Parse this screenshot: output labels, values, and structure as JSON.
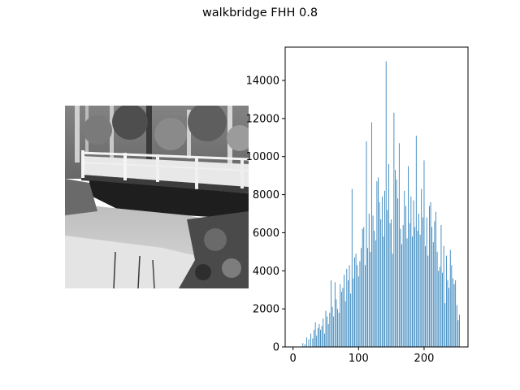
{
  "figure": {
    "title": "walkbridge FHH 0.8"
  },
  "image_panel": {
    "description_icon": "grayscale-photo-bridge-over-creek"
  },
  "chart_data": {
    "type": "bar",
    "title": "",
    "xlabel": "",
    "ylabel": "",
    "xlim": [
      -12,
      267
    ],
    "ylim": [
      0,
      15750
    ],
    "xticks": [
      0,
      100,
      200
    ],
    "yticks": [
      0,
      2000,
      4000,
      6000,
      8000,
      10000,
      12000,
      14000
    ],
    "bar_color": "#1f77b4",
    "x": [
      15,
      18,
      21,
      24,
      27,
      30,
      32,
      34,
      36,
      38,
      40,
      42,
      44,
      46,
      48,
      50,
      52,
      54,
      56,
      58,
      60,
      62,
      64,
      66,
      68,
      70,
      72,
      74,
      76,
      78,
      80,
      82,
      84,
      86,
      88,
      90,
      92,
      94,
      96,
      98,
      100,
      102,
      104,
      106,
      108,
      110,
      112,
      114,
      116,
      118,
      120,
      122,
      124,
      126,
      128,
      130,
      132,
      134,
      136,
      138,
      140,
      142,
      144,
      146,
      148,
      150,
      152,
      154,
      156,
      158,
      160,
      162,
      164,
      166,
      168,
      170,
      172,
      174,
      176,
      178,
      180,
      182,
      184,
      186,
      188,
      190,
      192,
      194,
      196,
      198,
      200,
      202,
      204,
      206,
      208,
      210,
      212,
      214,
      216,
      218,
      220,
      222,
      224,
      226,
      228,
      230,
      232,
      234,
      236,
      238,
      240,
      242,
      244,
      246,
      248,
      250,
      252,
      254
    ],
    "values": [
      200,
      150,
      500,
      400,
      700,
      450,
      900,
      1300,
      600,
      1000,
      1200,
      900,
      1100,
      1500,
      700,
      1900,
      1600,
      1200,
      1800,
      3500,
      2100,
      1600,
      3400,
      2500,
      2000,
      1800,
      3300,
      2900,
      3100,
      3800,
      2400,
      4100,
      3500,
      4300,
      2800,
      8300,
      3600,
      4700,
      4900,
      4300,
      3700,
      4500,
      5200,
      6200,
      6300,
      4300,
      10800,
      5200,
      7000,
      5000,
      11800,
      6900,
      6100,
      5600,
      8700,
      8900,
      7600,
      6700,
      7900,
      5800,
      8200,
      15000,
      7200,
      9600,
      6500,
      6700,
      4900,
      12300,
      9300,
      8800,
      7800,
      10700,
      6200,
      5400,
      6400,
      8200,
      7400,
      5700,
      9500,
      6500,
      7900,
      5800,
      7700,
      6300,
      11100,
      6100,
      7000,
      5900,
      8300,
      6800,
      9800,
      5300,
      6800,
      4800,
      7400,
      7600,
      6300,
      5500,
      6600,
      7100,
      5000,
      4000,
      4200,
      6400,
      3900,
      5300,
      2300,
      4800,
      3500,
      3100,
      5100,
      4300,
      3600,
      3300,
      3500,
      2200,
      1400,
      1700
    ]
  }
}
